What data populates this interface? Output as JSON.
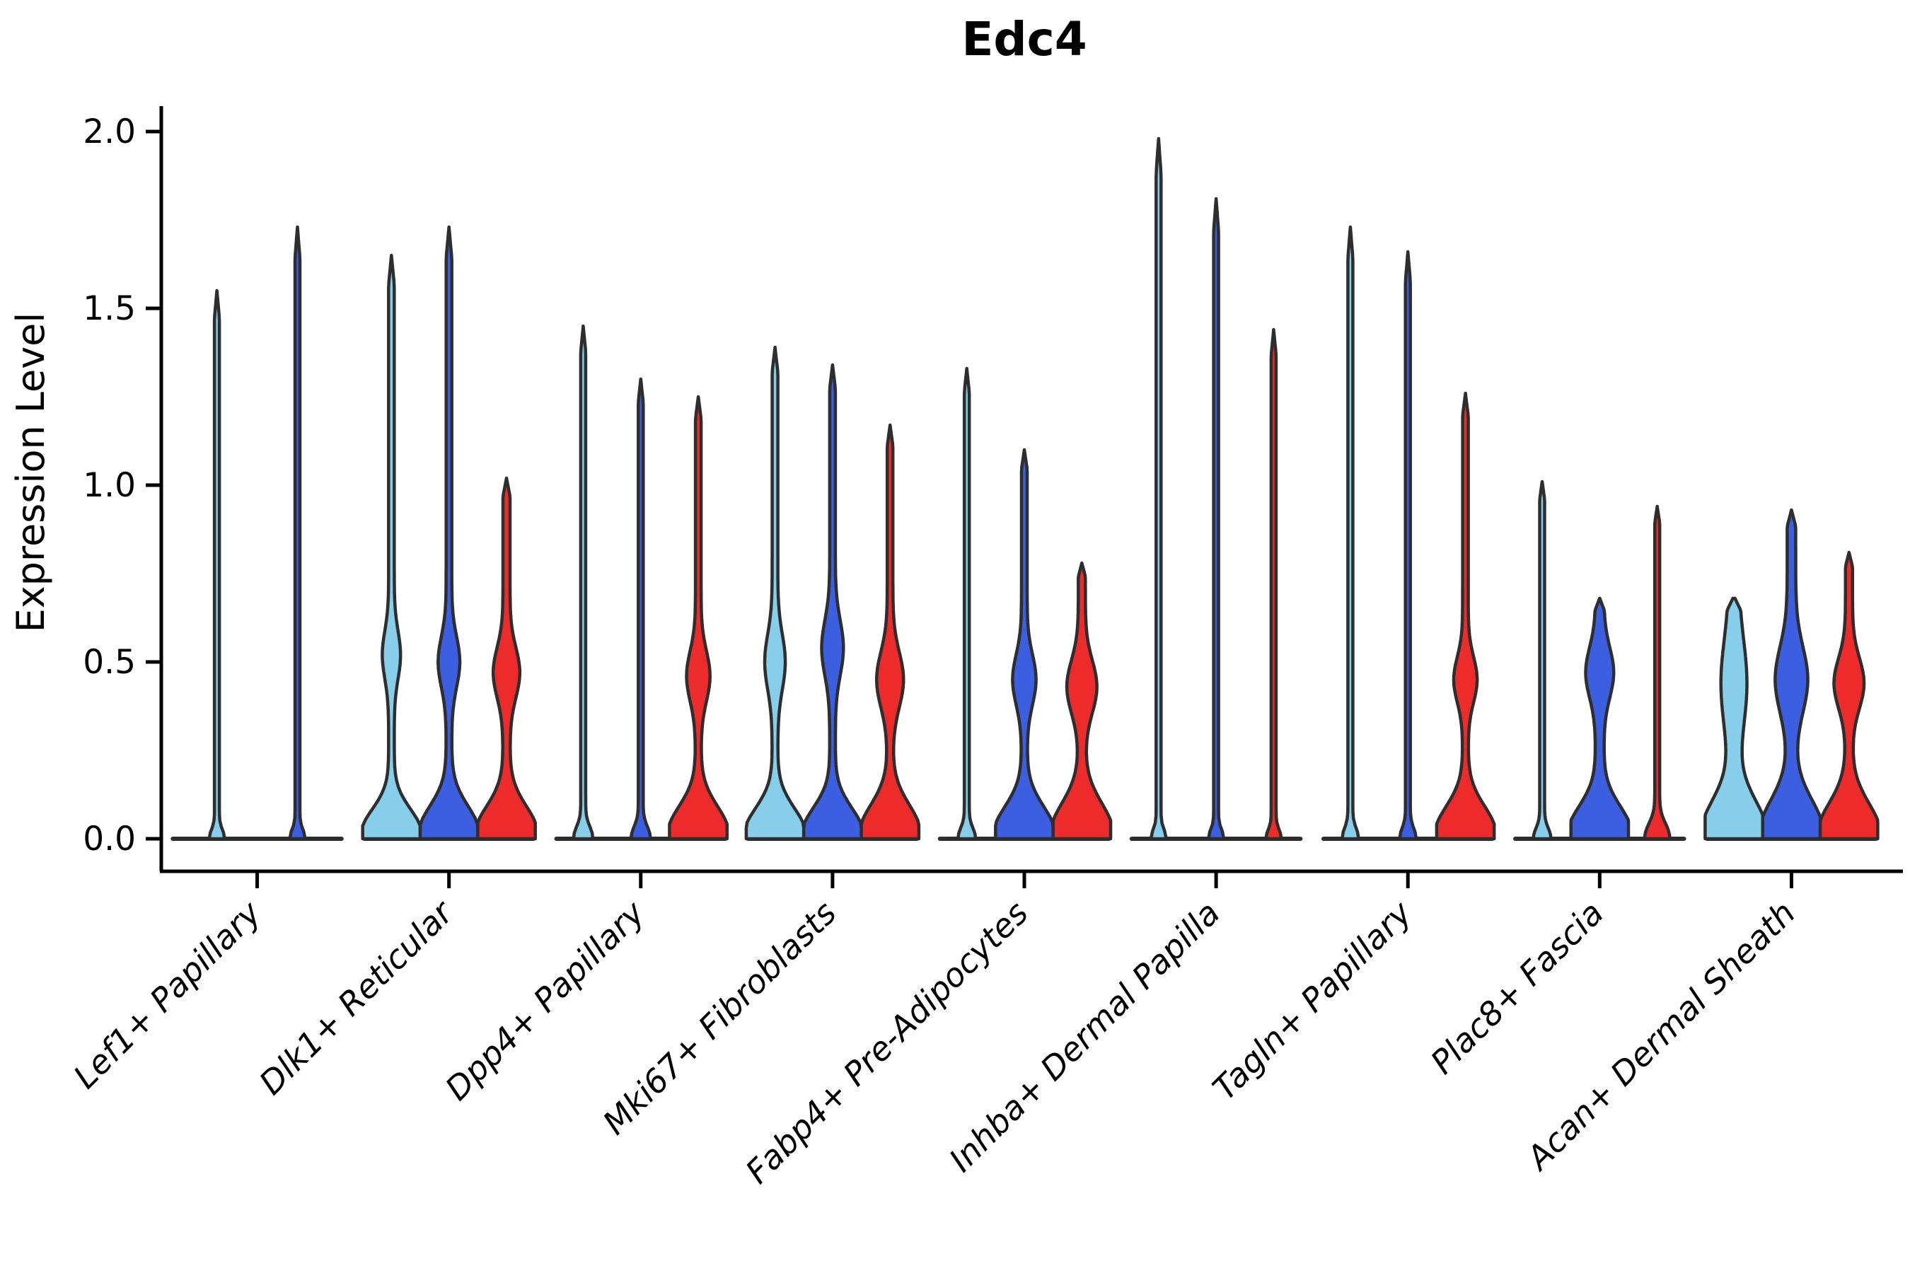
{
  "chart_data": {
    "type": "violin",
    "title": "Edc4",
    "xlabel": "",
    "ylabel": "Expression Level",
    "ylim": [
      0,
      2.05
    ],
    "yticks": [
      "0.0",
      "0.5",
      "1.0",
      "1.5",
      "2.0"
    ],
    "ytick_values": [
      0,
      0.5,
      1.0,
      1.5,
      2.0
    ],
    "grid": "off",
    "legend": "none",
    "palette": {
      "lightblue": "#87CEEB",
      "blue": "#3B5FE0",
      "red": "#EE2B2B",
      "edge": "#2E2E2E",
      "spine": "#000000"
    },
    "categories": [
      "Lef1+ Papillary",
      "Dlk1+ Reticular",
      "Dpp4+ Papillary",
      "Mki67+ Fibroblasts",
      "Fabp4+ Pre-Adipocytes",
      "Inhba+ Dermal Papilla",
      "Tagln+ Papillary",
      "Plac8+ Fascia",
      "Acan+ Dermal Sheath"
    ],
    "groups": [
      {
        "label": "Lef1+ Papillary",
        "violins": [
          {
            "hue": "lightblue",
            "offset": -0.21,
            "max": 1.55,
            "stem": 3.5,
            "base": {
              "h": 0.03,
              "w": 0.18
            },
            "bulge": null
          },
          {
            "hue": "blue",
            "offset": 0.21,
            "max": 1.73,
            "stem": 3.5,
            "base": {
              "h": 0.03,
              "w": 0.18
            },
            "bulge": null
          }
        ]
      },
      {
        "label": "Dlk1+ Reticular",
        "violins": [
          {
            "hue": "lightblue",
            "offset": -0.3,
            "max": 1.65,
            "stem": 4,
            "base": {
              "h": 0.095,
              "w": 1.0
            },
            "bulge": {
              "c": 0.52,
              "s": 0.095,
              "w": 0.22
            }
          },
          {
            "hue": "blue",
            "offset": 0.0,
            "max": 1.73,
            "stem": 4,
            "base": {
              "h": 0.105,
              "w": 1.0
            },
            "bulge": {
              "c": 0.5,
              "s": 0.1,
              "w": 0.28
            }
          },
          {
            "hue": "red",
            "offset": 0.3,
            "max": 1.02,
            "stem": 5,
            "base": {
              "h": 0.105,
              "w": 1.0
            },
            "bulge": {
              "c": 0.47,
              "s": 0.1,
              "w": 0.34
            }
          }
        ]
      },
      {
        "label": "Dpp4+ Papillary",
        "violins": [
          {
            "hue": "lightblue",
            "offset": -0.3,
            "max": 1.45,
            "stem": 3.5,
            "base": {
              "h": 0.04,
              "w": 0.25
            },
            "bulge": null
          },
          {
            "hue": "blue",
            "offset": 0.0,
            "max": 1.3,
            "stem": 3.5,
            "base": {
              "h": 0.04,
              "w": 0.25
            },
            "bulge": null
          },
          {
            "hue": "red",
            "offset": 0.3,
            "max": 1.25,
            "stem": 4,
            "base": {
              "h": 0.105,
              "w": 1.0
            },
            "bulge": {
              "c": 0.46,
              "s": 0.1,
              "w": 0.31
            }
          }
        ]
      },
      {
        "label": "Mki67+ Fibroblasts",
        "violins": [
          {
            "hue": "lightblue",
            "offset": -0.3,
            "max": 1.39,
            "stem": 4,
            "base": {
              "h": 0.1,
              "w": 1.0
            },
            "bulge": {
              "c": 0.5,
              "s": 0.11,
              "w": 0.26
            }
          },
          {
            "hue": "blue",
            "offset": 0.0,
            "max": 1.34,
            "stem": 4,
            "base": {
              "h": 0.1,
              "w": 1.0
            },
            "bulge": {
              "c": 0.54,
              "s": 0.11,
              "w": 0.28
            }
          },
          {
            "hue": "red",
            "offset": 0.3,
            "max": 1.17,
            "stem": 4,
            "base": {
              "h": 0.11,
              "w": 1.0
            },
            "bulge": {
              "c": 0.45,
              "s": 0.11,
              "w": 0.37
            }
          }
        ]
      },
      {
        "label": "Fabp4+ Pre-Adipocytes",
        "violins": [
          {
            "hue": "lightblue",
            "offset": -0.3,
            "max": 1.33,
            "stem": 3.5,
            "base": {
              "h": 0.035,
              "w": 0.22
            },
            "bulge": null
          },
          {
            "hue": "blue",
            "offset": 0.0,
            "max": 1.1,
            "stem": 4,
            "base": {
              "h": 0.105,
              "w": 1.0
            },
            "bulge": {
              "c": 0.45,
              "s": 0.1,
              "w": 0.31
            }
          },
          {
            "hue": "red",
            "offset": 0.3,
            "max": 0.78,
            "stem": 5,
            "base": {
              "h": 0.115,
              "w": 1.0
            },
            "bulge": {
              "c": 0.43,
              "s": 0.105,
              "w": 0.4
            }
          }
        ]
      },
      {
        "label": "Inhba+ Dermal Papilla",
        "violins": [
          {
            "hue": "lightblue",
            "offset": -0.3,
            "max": 1.98,
            "stem": 3.5,
            "base": {
              "h": 0.03,
              "w": 0.18
            },
            "bulge": null
          },
          {
            "hue": "blue",
            "offset": 0.0,
            "max": 1.81,
            "stem": 3.5,
            "base": {
              "h": 0.03,
              "w": 0.18
            },
            "bulge": null
          },
          {
            "hue": "red",
            "offset": 0.3,
            "max": 1.44,
            "stem": 3.5,
            "base": {
              "h": 0.03,
              "w": 0.18
            },
            "bulge": null
          }
        ]
      },
      {
        "label": "Tagln+ Papillary",
        "violins": [
          {
            "hue": "lightblue",
            "offset": -0.3,
            "max": 1.73,
            "stem": 3.5,
            "base": {
              "h": 0.035,
              "w": 0.2
            },
            "bulge": null
          },
          {
            "hue": "blue",
            "offset": 0.0,
            "max": 1.66,
            "stem": 3.5,
            "base": {
              "h": 0.035,
              "w": 0.2
            },
            "bulge": null
          },
          {
            "hue": "red",
            "offset": 0.3,
            "max": 1.26,
            "stem": 4,
            "base": {
              "h": 0.105,
              "w": 1.0
            },
            "bulge": {
              "c": 0.45,
              "s": 0.09,
              "w": 0.31
            }
          }
        ]
      },
      {
        "label": "Plac8+ Fascia",
        "violins": [
          {
            "hue": "lightblue",
            "offset": -0.3,
            "max": 1.01,
            "stem": 3.5,
            "base": {
              "h": 0.035,
              "w": 0.22
            },
            "bulge": null
          },
          {
            "hue": "blue",
            "offset": 0.0,
            "max": 0.68,
            "stem": 6,
            "base": {
              "h": 0.105,
              "w": 1.0
            },
            "bulge": {
              "c": 0.47,
              "s": 0.1,
              "w": 0.34
            },
            "tip": 0.07
          },
          {
            "hue": "red",
            "offset": 0.3,
            "max": 0.94,
            "stem": 3.5,
            "base": {
              "h": 0.05,
              "w": 0.35
            },
            "bulge": null
          }
        ]
      },
      {
        "label": "Acan+ Dermal Sheath",
        "violins": [
          {
            "hue": "lightblue",
            "offset": -0.3,
            "max": 0.68,
            "stem": 7,
            "base": {
              "h": 0.125,
              "w": 1.0
            },
            "bulge": {
              "c": 0.44,
              "s": 0.17,
              "w": 0.28
            },
            "tip": 0.08
          },
          {
            "hue": "blue",
            "offset": 0.0,
            "max": 0.93,
            "stem": 6,
            "base": {
              "h": 0.125,
              "w": 1.0
            },
            "bulge": {
              "c": 0.45,
              "s": 0.13,
              "w": 0.42
            }
          },
          {
            "hue": "red",
            "offset": 0.3,
            "max": 0.81,
            "stem": 5,
            "base": {
              "h": 0.115,
              "w": 1.0
            },
            "bulge": {
              "c": 0.44,
              "s": 0.1,
              "w": 0.4
            }
          }
        ]
      }
    ]
  }
}
